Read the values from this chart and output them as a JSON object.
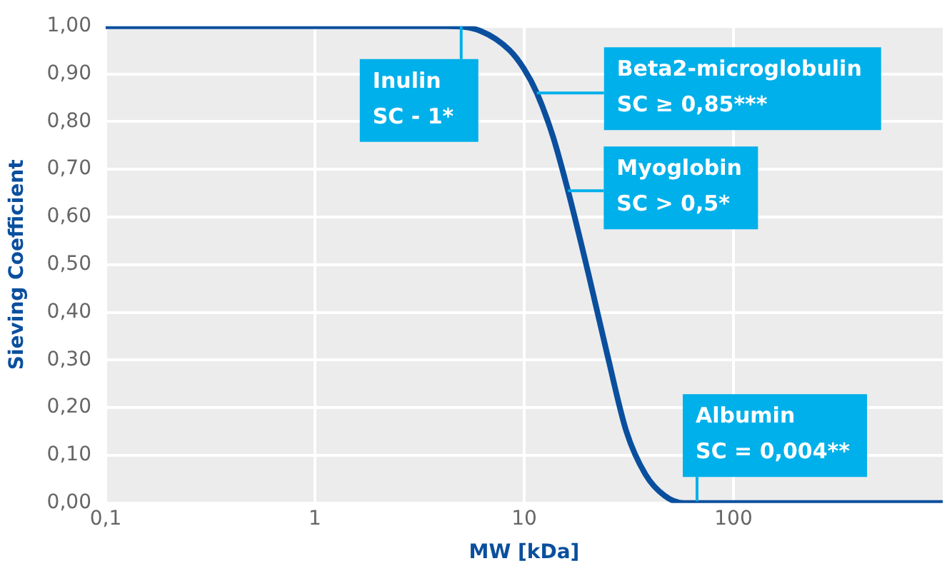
{
  "chart_data": {
    "type": "line",
    "xlabel": "MW [kDa]",
    "ylabel": "Sieving Coefficient",
    "log": "x",
    "grid": true,
    "legend": false,
    "marker": "none",
    "line_style": "solid",
    "xlim": [
      0.1,
      1000
    ],
    "xticks": [
      {
        "value": 0.1,
        "label": "0,1"
      },
      1,
      10,
      100
    ],
    "ylim": [
      0,
      1
    ],
    "yticks": [
      {
        "value": 0,
        "label": "0,00"
      },
      {
        "value": 0.1,
        "label": "0,10"
      },
      {
        "value": 0.2,
        "label": "0,20"
      },
      {
        "value": 0.3,
        "label": "0,30"
      },
      {
        "value": 0.4,
        "label": "0,40"
      },
      {
        "value": 0.5,
        "label": "0,50"
      },
      {
        "value": 0.6,
        "label": "0,60"
      },
      {
        "value": 0.7,
        "label": "0,70"
      },
      {
        "value": 0.8,
        "label": "0,80"
      },
      {
        "value": 0.9,
        "label": "0,90"
      },
      {
        "value": 1,
        "label": "1,00"
      }
    ],
    "series": [
      {
        "color": "#0a4f9e",
        "x": [
          0.1,
          1,
          4.3,
          6.2,
          8.5,
          10,
          11.5,
          13.7,
          16.2,
          20.3,
          25,
          30.8,
          38,
          47,
          58,
          100,
          1000
        ],
        "values": [
          1,
          1,
          1,
          0.99,
          0.95,
          0.91,
          0.86,
          0.77,
          0.655,
          0.48,
          0.31,
          0.15,
          0.06,
          0.015,
          0,
          0,
          0
        ]
      }
    ],
    "annotations": [
      {
        "text": "Inulin\nSC - 1*",
        "x": 5,
        "y": 1
      },
      {
        "text": "Beta2-microglobulin\nSC ≥ 0,85***",
        "x": 11.5,
        "y": 0.86
      },
      {
        "text": "Myoglobin\nSC > 0,5*",
        "x": 16.2,
        "y": 0.655
      },
      {
        "text": "Albumin\nSC = 0,004**",
        "x": 67,
        "y": 0.004
      }
    ]
  }
}
